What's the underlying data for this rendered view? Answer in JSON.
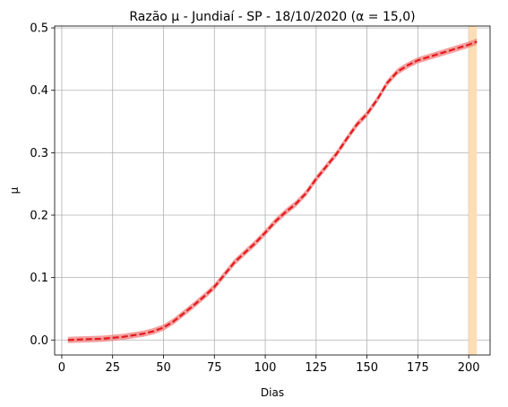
{
  "chart_data": {
    "type": "line",
    "title": "Razão µ - Jundiaí - SP - 18/10/2020 (α = 15,0)",
    "xlabel": "Dias",
    "ylabel": "µ",
    "xlim": [
      -3.5,
      210.5
    ],
    "ylim": [
      -0.024,
      0.503
    ],
    "xticks": [
      0,
      25,
      50,
      75,
      100,
      125,
      150,
      175,
      200
    ],
    "xtick_labels": [
      "0",
      "25",
      "50",
      "75",
      "100",
      "125",
      "150",
      "175",
      "200"
    ],
    "yticks": [
      0.0,
      0.1,
      0.2,
      0.3,
      0.4,
      0.5
    ],
    "ytick_labels": [
      "0.0",
      "0.1",
      "0.2",
      "0.3",
      "0.4",
      "0.5"
    ],
    "grid": true,
    "series": [
      {
        "style": "dashed",
        "color": "#e41a1c",
        "band_color": "#f08080",
        "x": [
          3,
          10,
          20,
          30,
          40,
          45,
          50,
          55,
          60,
          65,
          70,
          75,
          80,
          85,
          90,
          95,
          100,
          105,
          110,
          115,
          120,
          125,
          130,
          135,
          140,
          145,
          150,
          155,
          160,
          165,
          170,
          175,
          180,
          185,
          190,
          195,
          200,
          204
        ],
        "y": [
          0.0,
          0.001,
          0.002,
          0.005,
          0.01,
          0.014,
          0.02,
          0.03,
          0.043,
          0.056,
          0.07,
          0.085,
          0.105,
          0.125,
          0.14,
          0.155,
          0.172,
          0.19,
          0.205,
          0.218,
          0.235,
          0.258,
          0.278,
          0.298,
          0.322,
          0.345,
          0.362,
          0.385,
          0.412,
          0.43,
          0.44,
          0.448,
          0.453,
          0.458,
          0.463,
          0.468,
          0.473,
          0.478
        ],
        "band_halfwidth": 0.005
      }
    ],
    "highlight_span": {
      "x0": 200,
      "x1": 204,
      "color": "#ffdeb5"
    }
  }
}
